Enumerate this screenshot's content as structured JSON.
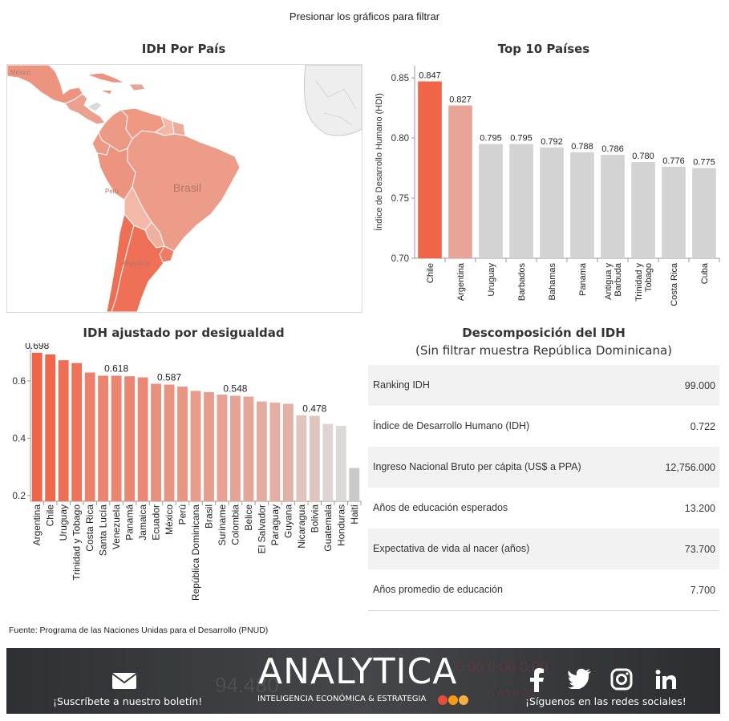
{
  "page": {
    "instruction": "Presionar los gráficos para filtrar",
    "source": "Fuente: Programa de las Naciones Unidas para el Desarrollo (PNUD)"
  },
  "map": {
    "title": "IDH Por País",
    "labels": [
      "México",
      "Brasil",
      "Perú",
      "Argentina"
    ]
  },
  "chart_data": [
    {
      "type": "bar",
      "title": "Top 10 Países",
      "ylabel": "Índice de Desarrollo Humano (HDI)",
      "ylim": [
        0.7,
        0.86
      ],
      "yticks": [
        "0.70",
        "0.75",
        "0.80",
        "0.85"
      ],
      "categories": [
        "Chile",
        "Argentina",
        "Uruguay",
        "Barbados",
        "Bahamas",
        "Panama",
        "Antigua y Barbuda",
        "Trinidad y Tobago",
        "Costa Rica",
        "Cuba"
      ],
      "values": [
        0.847,
        0.827,
        0.795,
        0.795,
        0.792,
        0.788,
        0.786,
        0.78,
        0.776,
        0.775
      ],
      "data_labels": [
        "0.847",
        "0.827",
        "0.795",
        "0.795",
        "0.792",
        "0.788",
        "0.786",
        "0.780",
        "0.776",
        "0.775"
      ],
      "colors": [
        "#f06548",
        "#e8a597",
        "#d3d3d3",
        "#d3d3d3",
        "#d3d3d3",
        "#d3d3d3",
        "#d3d3d3",
        "#d3d3d3",
        "#d3d3d3",
        "#d3d3d3"
      ],
      "grid": false
    },
    {
      "type": "bar",
      "title": "IDH ajustado por desigualdad",
      "ylim": [
        0.18,
        0.72
      ],
      "yticks": [
        "0.2",
        "0.4",
        "0.6"
      ],
      "categories": [
        "Argentina",
        "Chile",
        "Uruguay",
        "Trinidad y Tobago",
        "Costa Rica",
        "Santa Lucía",
        "Venezuela",
        "Panamá",
        "Jamaica",
        "Ecuador",
        "México",
        "Perú",
        "República Dominicana",
        "Brasil",
        "Suriname",
        "Colombia",
        "Belice",
        "El Salvador",
        "Paraguay",
        "Guyana",
        "Nicaragua",
        "Bolivia",
        "Guatemala",
        "Honduras",
        "Haití"
      ],
      "values": [
        0.698,
        0.692,
        0.672,
        0.662,
        0.629,
        0.618,
        0.618,
        0.616,
        0.612,
        0.59,
        0.587,
        0.58,
        0.565,
        0.561,
        0.552,
        0.548,
        0.545,
        0.528,
        0.524,
        0.52,
        0.48,
        0.478,
        0.45,
        0.443,
        0.296
      ],
      "data_labels": [
        {
          "index": 0,
          "text": "0.698"
        },
        {
          "index": 6,
          "text": "0.618"
        },
        {
          "index": 10,
          "text": "0.587"
        },
        {
          "index": 15,
          "text": "0.548"
        },
        {
          "index": 21,
          "text": "0.478"
        }
      ],
      "color_low": "#c9c9c9",
      "color_high": "#f06548",
      "grid": false
    }
  ],
  "decomposition": {
    "title": "Descomposición del IDH",
    "subtitle": "(Sin filtrar muestra República Dominicana)",
    "rows": [
      {
        "label": "Ranking IDH",
        "value": "99.000"
      },
      {
        "label": "Índice de Desarrollo Humano (IDH)",
        "value": "0.722"
      },
      {
        "label": "Ingreso Nacional Bruto per cápita (US$ a PPA)",
        "value": "12,756.000"
      },
      {
        "label": "Años de educación esperados",
        "value": "13.200"
      },
      {
        "label": "Expectativa de vida al nacer (años)",
        "value": "73.700"
      },
      {
        "label": "Años promedio de educación",
        "value": "7.700"
      }
    ]
  },
  "footer": {
    "newsletter": "¡Suscríbete a nuestro boletín!",
    "brand": "ANALYTICA",
    "tagline": "INTELIGENCIA ECONÓMICA & ESTRATEGIA",
    "follow": "¡Síguenos en las redes sociales!",
    "icons": [
      "mail-icon",
      "facebook-icon",
      "twitter-icon",
      "instagram-icon",
      "linkedin-icon"
    ],
    "brand_dots": [
      "#e74c3c",
      "#f39c12",
      "#f5b041"
    ]
  }
}
